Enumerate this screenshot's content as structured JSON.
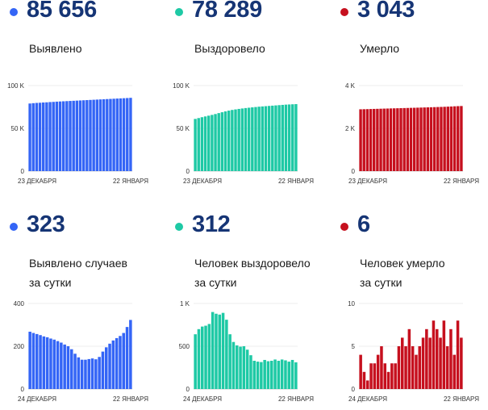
{
  "colors": {
    "blue": "#3465f6",
    "green": "#1ec9a5",
    "red": "#c6101e",
    "number": "#163575"
  },
  "panels": [
    {
      "number": "85 656",
      "label_line1": "Выявлено",
      "label_line2": ""
    },
    {
      "number": "78 289",
      "label_line1": "Выздоровело",
      "label_line2": ""
    },
    {
      "number": "3 043",
      "label_line1": "Умерло",
      "label_line2": ""
    },
    {
      "number": "323",
      "label_line1": "Выявлено случаев",
      "label_line2": "за сутки"
    },
    {
      "number": "312",
      "label_line1": "Человек выздоровело",
      "label_line2": "за сутки"
    },
    {
      "number": "6",
      "label_line1": "Человек умерло",
      "label_line2": "за сутки"
    }
  ],
  "chart_data": [
    {
      "type": "bar",
      "color": "blue",
      "yticks": [
        {
          "v": 0,
          "t": "0"
        },
        {
          "v": 50000,
          "t": "50 K"
        },
        {
          "v": 100000,
          "t": "100 K"
        }
      ],
      "ylim": [
        0,
        100000
      ],
      "x_start": "23 ДЕКАБРЯ",
      "x_end": "22 ЯНВАРЯ",
      "values": [
        79000,
        79400,
        79700,
        79900,
        80200,
        80400,
        80700,
        80900,
        81200,
        81400,
        81600,
        81800,
        82000,
        82200,
        82400,
        82600,
        82800,
        83000,
        83200,
        83400,
        83600,
        83800,
        84000,
        84200,
        84400,
        84600,
        84800,
        85000,
        85200,
        85400,
        85656
      ]
    },
    {
      "type": "bar",
      "color": "green",
      "yticks": [
        {
          "v": 0,
          "t": "0"
        },
        {
          "v": 50000,
          "t": "50 K"
        },
        {
          "v": 100000,
          "t": "100 K"
        }
      ],
      "ylim": [
        0,
        100000
      ],
      "x_start": "23 ДЕКАБРЯ",
      "x_end": "22 ЯНВАРЯ",
      "values": [
        61000,
        62000,
        63000,
        63900,
        64800,
        65700,
        66700,
        67800,
        68800,
        69800,
        70700,
        71500,
        72100,
        72700,
        73200,
        73700,
        74100,
        74500,
        74900,
        75300,
        75600,
        75900,
        76200,
        76500,
        76800,
        77100,
        77400,
        77700,
        77900,
        78100,
        78289
      ]
    },
    {
      "type": "bar",
      "color": "red",
      "yticks": [
        {
          "v": 0,
          "t": "0"
        },
        {
          "v": 2000,
          "t": "2 K"
        },
        {
          "v": 4000,
          "t": "4 K"
        }
      ],
      "ylim": [
        0,
        4000
      ],
      "x_start": "23 ДЕКАБРЯ",
      "x_end": "22 ЯНВАРЯ",
      "values": [
        2890,
        2894,
        2898,
        2903,
        2908,
        2912,
        2917,
        2922,
        2926,
        2931,
        2935,
        2939,
        2943,
        2948,
        2952,
        2957,
        2961,
        2966,
        2971,
        2976,
        2981,
        2986,
        2991,
        2996,
        3001,
        3007,
        3014,
        3021,
        3030,
        3037,
        3043
      ]
    },
    {
      "type": "bar",
      "color": "blue",
      "yticks": [
        {
          "v": 0,
          "t": "0"
        },
        {
          "v": 200,
          "t": "200"
        },
        {
          "v": 400,
          "t": "400"
        }
      ],
      "ylim": [
        0,
        400
      ],
      "x_start": "24 ДЕКАБРЯ",
      "x_end": "22 ЯНВАРЯ",
      "values": [
        268,
        262,
        257,
        252,
        246,
        242,
        236,
        231,
        224,
        217,
        208,
        200,
        186,
        165,
        148,
        137,
        137,
        140,
        143,
        139,
        150,
        175,
        195,
        212,
        227,
        238,
        248,
        262,
        290,
        323
      ]
    },
    {
      "type": "bar",
      "color": "green",
      "yticks": [
        {
          "v": 0,
          "t": "0"
        },
        {
          "v": 500,
          "t": "500"
        },
        {
          "v": 1000,
          "t": "1 K"
        }
      ],
      "ylim": [
        0,
        1000
      ],
      "x_start": "24 ДЕКАБРЯ",
      "x_end": "22 ЯНВАРЯ",
      "values": [
        640,
        700,
        730,
        740,
        760,
        900,
        880,
        870,
        890,
        810,
        640,
        550,
        510,
        495,
        500,
        460,
        395,
        330,
        320,
        315,
        340,
        325,
        330,
        345,
        330,
        345,
        335,
        320,
        340,
        312
      ]
    },
    {
      "type": "bar",
      "color": "red",
      "yticks": [
        {
          "v": 0,
          "t": "0"
        },
        {
          "v": 5,
          "t": "5"
        },
        {
          "v": 10,
          "t": "10"
        }
      ],
      "ylim": [
        0,
        10
      ],
      "x_start": "24 ДЕКАБРЯ",
      "x_end": "22 ЯНВАРЯ",
      "values": [
        4,
        2,
        1,
        3,
        3,
        4,
        5,
        3,
        2,
        3,
        3,
        5,
        6,
        5,
        7,
        5,
        4,
        5,
        6,
        7,
        6,
        8,
        7,
        6,
        8,
        5,
        7,
        4,
        8,
        6
      ]
    }
  ]
}
